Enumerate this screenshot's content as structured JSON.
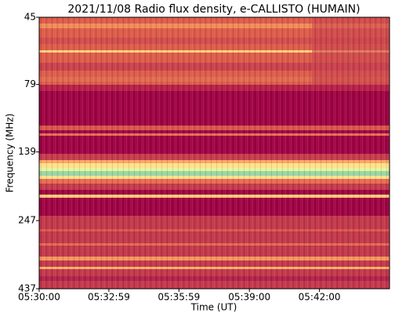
{
  "chart_data": {
    "type": "spectrogram",
    "title": "2021/11/08  Radio flux density, e-CALLISTO (HUMAIN)",
    "x_label": "Time (UT)",
    "y_label": "Frequency (MHz)",
    "xlim": [
      19800,
      20700
    ],
    "xticks": [
      {
        "value": 19800,
        "label": "05:30:00"
      },
      {
        "value": 19979,
        "label": "05:32:59"
      },
      {
        "value": 20159,
        "label": "05:35:59"
      },
      {
        "value": 20340,
        "label": "05:39:00"
      },
      {
        "value": 20520,
        "label": "05:42:00"
      }
    ],
    "ylim": [
      45,
      437
    ],
    "y_log": true,
    "y_inverted": true,
    "yticks": [
      45,
      79,
      139,
      247,
      437
    ]
  }
}
